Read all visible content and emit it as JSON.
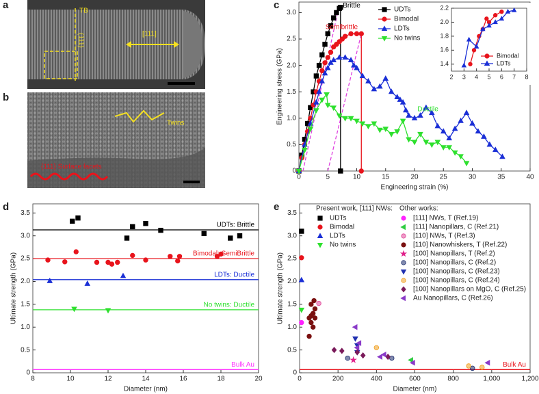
{
  "images": [
    {
      "panel": "a",
      "annotations": [
        "TB",
        "(111)",
        "[111]"
      ]
    },
    {
      "panel": "b",
      "annotations": [
        "Twins",
        "{111} Surface facets"
      ]
    }
  ],
  "chart_data": [
    {
      "type": "line",
      "panel": "c",
      "xlabel": "Engineering strain (%)",
      "ylabel": "Engineering stress (GPa)",
      "xlim": [
        0,
        40
      ],
      "ylim": [
        0,
        3.2
      ],
      "xticks": [
        0,
        5,
        10,
        15,
        20,
        25,
        30,
        35,
        40
      ],
      "yticks": [
        0,
        0.5,
        {
          "value": 1,
          "label": "1.0"
        },
        1.5,
        {
          "value": 2,
          "label": "2.0"
        },
        2.5,
        {
          "value": 3,
          "label": "3.0"
        }
      ],
      "legend": "upper center",
      "series": [
        {
          "name": "UDTs",
          "color": "#000000",
          "marker": "square",
          "x": [
            0,
            0.5,
            1,
            1.5,
            2,
            2.5,
            3,
            3.5,
            4,
            4.5,
            5,
            5.5,
            6,
            6.5,
            7,
            7.2,
            7.2
          ],
          "values": [
            0,
            0.3,
            0.6,
            0.9,
            1.2,
            1.5,
            1.8,
            2.0,
            2.2,
            2.4,
            2.6,
            2.75,
            2.9,
            3.0,
            3.08,
            3.1,
            0
          ]
        },
        {
          "name": "Bimodal",
          "color": "#e8141c",
          "marker": "circle",
          "x": [
            0,
            0.5,
            1,
            1.5,
            2,
            2.5,
            3,
            3.5,
            4,
            4.5,
            5,
            5.5,
            6,
            6.5,
            7,
            7.5,
            8,
            9,
            10,
            10.8,
            10.8
          ],
          "values": [
            0,
            0.25,
            0.5,
            0.75,
            1.0,
            1.25,
            1.5,
            1.7,
            1.9,
            2.05,
            2.15,
            2.25,
            2.35,
            2.4,
            2.45,
            2.5,
            2.55,
            2.6,
            2.6,
            2.6,
            0
          ]
        },
        {
          "name": "LDTs",
          "color": "#1a2fd6",
          "marker": "triangle",
          "x": [
            0,
            1,
            2,
            3,
            3.5,
            4,
            4.5,
            5,
            5.5,
            6,
            7,
            8,
            9,
            9.5,
            10,
            11,
            12,
            13,
            14,
            15,
            16,
            17,
            17.5,
            18,
            18.5,
            19,
            20,
            21,
            22,
            23,
            24,
            25,
            26,
            27,
            28,
            29,
            30,
            31,
            32,
            33,
            34,
            35.2
          ],
          "values": [
            0,
            0.5,
            0.9,
            1.3,
            1.5,
            1.7,
            1.85,
            1.95,
            2.05,
            2.1,
            2.15,
            2.15,
            2.1,
            2.0,
            1.95,
            1.8,
            1.7,
            1.55,
            1.6,
            1.75,
            1.5,
            1.4,
            1.35,
            1.3,
            1.15,
            1.05,
            1.0,
            1.05,
            1.2,
            1.1,
            0.85,
            0.75,
            0.62,
            0.8,
            0.95,
            1.1,
            0.9,
            0.75,
            0.65,
            0.5,
            0.4,
            0.27
          ]
        },
        {
          "name": "No twins",
          "color": "#2ee02e",
          "marker": "triangle-down",
          "x": [
            0,
            1,
            2,
            3,
            4,
            4.8,
            5,
            6,
            7,
            8,
            9,
            10,
            11,
            12,
            13,
            14,
            15,
            16,
            17,
            18,
            19,
            20,
            21,
            22,
            23,
            24,
            25,
            26,
            27,
            28,
            29
          ],
          "values": [
            0,
            0.4,
            0.8,
            1.15,
            1.35,
            1.45,
            1.25,
            1.2,
            1.05,
            1.0,
            1.0,
            0.95,
            0.9,
            0.85,
            0.9,
            0.78,
            0.8,
            0.7,
            0.75,
            0.95,
            0.6,
            0.55,
            0.7,
            0.55,
            0.5,
            0.55,
            0.45,
            0.45,
            0.35,
            0.28,
            0.15
          ]
        }
      ],
      "reference_lines": [
        {
          "color": "#e040e0",
          "x": [
            0.7,
            6.9
          ],
          "values": [
            0,
            3.1
          ]
        },
        {
          "color": "#e040e0",
          "x": [
            5,
            10.8
          ],
          "values": [
            0,
            2.6
          ]
        }
      ],
      "annotations": [
        {
          "text": "Brittle",
          "color": "#000000"
        },
        {
          "text": "Semibrittle",
          "color": "#e8141c"
        },
        {
          "text": "Ductile",
          "color": "#1a2fd6"
        },
        {
          "text": "Ductile",
          "color": "#2ee02e"
        }
      ]
    },
    {
      "type": "line",
      "xlim": [
        2,
        8
      ],
      "ylim": [
        1.3,
        2.2
      ],
      "xticks": [
        2,
        3,
        4,
        5,
        6,
        7,
        8
      ],
      "yticks": [
        1.4,
        1.6,
        1.8,
        {
          "value": 2,
          "label": "2.0"
        },
        2.2
      ],
      "legend": "lower right",
      "series": [
        {
          "name": "Bimodal",
          "color": "#e8141c",
          "marker": "circle",
          "x": [
            3.5,
            3.8,
            4.2,
            4.5,
            4.8,
            5,
            5.5,
            6
          ],
          "values": [
            1.4,
            1.6,
            1.8,
            1.9,
            2.05,
            2.0,
            2.1,
            2.15
          ]
        },
        {
          "name": "LDTs",
          "color": "#1a2fd6",
          "marker": "triangle",
          "x": [
            3,
            3.4,
            4,
            4.5,
            5,
            5.5,
            6,
            6.5,
            7
          ],
          "values": [
            1.38,
            1.75,
            1.65,
            1.9,
            1.95,
            2.0,
            2.05,
            2.15,
            2.17
          ]
        }
      ]
    },
    {
      "type": "scatter",
      "panel": "d",
      "xlabel": "Diameter (nm)",
      "ylabel": "Ultimate strength (GPa)",
      "xlim": [
        8,
        20
      ],
      "ylim": [
        0,
        3.7
      ],
      "xticks": [
        8,
        10,
        12,
        14,
        16,
        18,
        20
      ],
      "yticks": [
        0,
        0.5,
        {
          "value": 1,
          "label": "1.0"
        },
        1.5,
        {
          "value": 2,
          "label": "2.0"
        },
        2.5,
        {
          "value": 3,
          "label": "3.0"
        },
        3.5
      ],
      "series": [
        {
          "name": "UDTs",
          "color": "#000000",
          "marker": "square",
          "x": [
            10.1,
            10.4,
            13.3,
            14.0,
            13.0,
            14.8,
            17.1,
            18.5,
            19.0
          ],
          "values": [
            3.32,
            3.39,
            3.2,
            3.27,
            2.95,
            3.12,
            3.05,
            2.95,
            3.0
          ]
        },
        {
          "name": "Bimodal",
          "color": "#e8141c",
          "marker": "circle",
          "x": [
            8.8,
            9.7,
            10.3,
            11.4,
            12.0,
            12.2,
            12.5,
            13.3,
            14.0,
            15.3,
            15.7,
            15.8,
            17.8,
            18.0
          ],
          "values": [
            2.47,
            2.43,
            2.65,
            2.42,
            2.42,
            2.38,
            2.42,
            2.57,
            2.47,
            2.55,
            2.45,
            2.55,
            2.55,
            2.6
          ]
        },
        {
          "name": "LDTs",
          "color": "#1a2fd6",
          "marker": "triangle",
          "x": [
            8.9,
            10.9,
            12.8
          ],
          "values": [
            2.01,
            1.95,
            2.12
          ]
        },
        {
          "name": "No twins",
          "color": "#2ee02e",
          "marker": "triangle-down",
          "x": [
            10.2,
            12.0
          ],
          "values": [
            1.4,
            1.37
          ]
        }
      ],
      "hlines": [
        {
          "label": "UDTs: Brittle",
          "value": 3.13,
          "color": "#000000"
        },
        {
          "label": "Bimodal: SemiBrittle",
          "value": 2.5,
          "color": "#e8141c"
        },
        {
          "label": "LDTs: Ductile",
          "value": 2.04,
          "color": "#1a2fd6"
        },
        {
          "label": "No twins: Ductile",
          "value": 1.38,
          "color": "#2ee02e"
        },
        {
          "label": "Bulk Au",
          "value": 0.07,
          "color": "#ff33ff"
        }
      ]
    },
    {
      "type": "scatter",
      "panel": "e",
      "xlabel": "Diameter (nm)",
      "ylabel": "Ultimate strength (GPa)",
      "xlim": [
        0,
        1200
      ],
      "ylim": [
        0,
        3.7
      ],
      "xticks": [
        0,
        200,
        400,
        600,
        800,
        {
          "value": 1000,
          "label": "1,000"
        },
        {
          "value": 1200,
          "label": "1,200"
        }
      ],
      "yticks": [
        0,
        0.5,
        {
          "value": 1,
          "label": "1.0"
        },
        1.5,
        {
          "value": 2,
          "label": "2.0"
        },
        2.5,
        {
          "value": 3,
          "label": "3.0"
        },
        3.5
      ],
      "series_groups": [
        {
          "title": "Present work, [111] NWs:",
          "series": [
            {
              "name": "UDTs",
              "color": "#000000",
              "marker": "square",
              "x": [
                10
              ],
              "values": [
                3.1
              ]
            },
            {
              "name": "Bimodal",
              "color": "#e8141c",
              "marker": "circle",
              "x": [
                10
              ],
              "values": [
                2.52
              ]
            },
            {
              "name": "LDTs",
              "color": "#1a2fd6",
              "marker": "triangle",
              "x": [
                10
              ],
              "values": [
                2.03
              ]
            },
            {
              "name": "No twins",
              "color": "#2ee02e",
              "marker": "triangle-down",
              "x": [
                10
              ],
              "values": [
                1.38
              ]
            }
          ]
        },
        {
          "title": "Other works:",
          "series": [
            {
              "name": "[111] NWs, T (Ref.19)",
              "color": "#ff22ff",
              "marker": "circle",
              "x": [
                10
              ],
              "values": [
                1.1
              ]
            },
            {
              "name": "[111] Nanopillars, C (Ref.21)",
              "color": "#2ecc40",
              "marker": "triangle-left",
              "x": [
                580
              ],
              "values": [
                0.28
              ]
            },
            {
              "name": "[110] NWs, T (Ref.3)",
              "color": "#e0489a",
              "marker": "half-circle",
              "x": [
                100
              ],
              "values": [
                1.52
              ]
            },
            {
              "name": "[110] Nanowhiskers, T (Ref.22)",
              "color": "#7a1010",
              "marker": "circle",
              "x": [
                50,
                60,
                70,
                80,
                60,
                70,
                50,
                80,
                60,
                75
              ],
              "values": [
                1.2,
                1.25,
                1.3,
                1.2,
                1.1,
                1.0,
                0.8,
                1.4,
                1.5,
                1.58
              ]
            },
            {
              "name": "[100] Nanopillars, T (Ref.2)",
              "color": "#e0208a",
              "marker": "star",
              "x": [
                280
              ],
              "values": [
                0.28
              ]
            },
            {
              "name": "[100] Nanopillars, C (Ref.2)",
              "color": "#1a2a6c",
              "marker": "half-circle",
              "x": [
                250,
                480,
                900
              ],
              "values": [
                0.32,
                0.32,
                0.1
              ]
            },
            {
              "name": "[100] Nanopillars, C (Ref.23)",
              "color": "#2030b0",
              "marker": "triangle-down",
              "x": [
                290,
                300,
                300
              ],
              "values": [
                0.75,
                0.6,
                0.45
              ]
            },
            {
              "name": "[100] Nanopillars, C (Ref.24)",
              "color": "#f0a020",
              "marker": "half-circle",
              "x": [
                400,
                880,
                950
              ],
              "values": [
                0.55,
                0.15,
                0.12
              ]
            },
            {
              "name": "[100] Nanopillars on MgO, C (Ref.25)",
              "color": "#7a1a5a",
              "marker": "diamond",
              "x": [
                180,
                220,
                300,
                330,
                460
              ],
              "values": [
                0.5,
                0.48,
                0.45,
                0.38,
                0.35
              ]
            },
            {
              "name": "Au Nanopillars, C (Ref.26)",
              "color": "#8a3ac8",
              "marker": "triangle-left",
              "x": [
                290,
                310,
                420,
                440,
                590,
                980,
                300
              ],
              "values": [
                1.0,
                0.65,
                0.35,
                0.4,
                0.22,
                0.22,
                0.55
              ]
            }
          ]
        }
      ],
      "hlines": [
        {
          "label": "Bulk Au",
          "value": 0.07,
          "color": "#e8141c"
        }
      ]
    }
  ]
}
